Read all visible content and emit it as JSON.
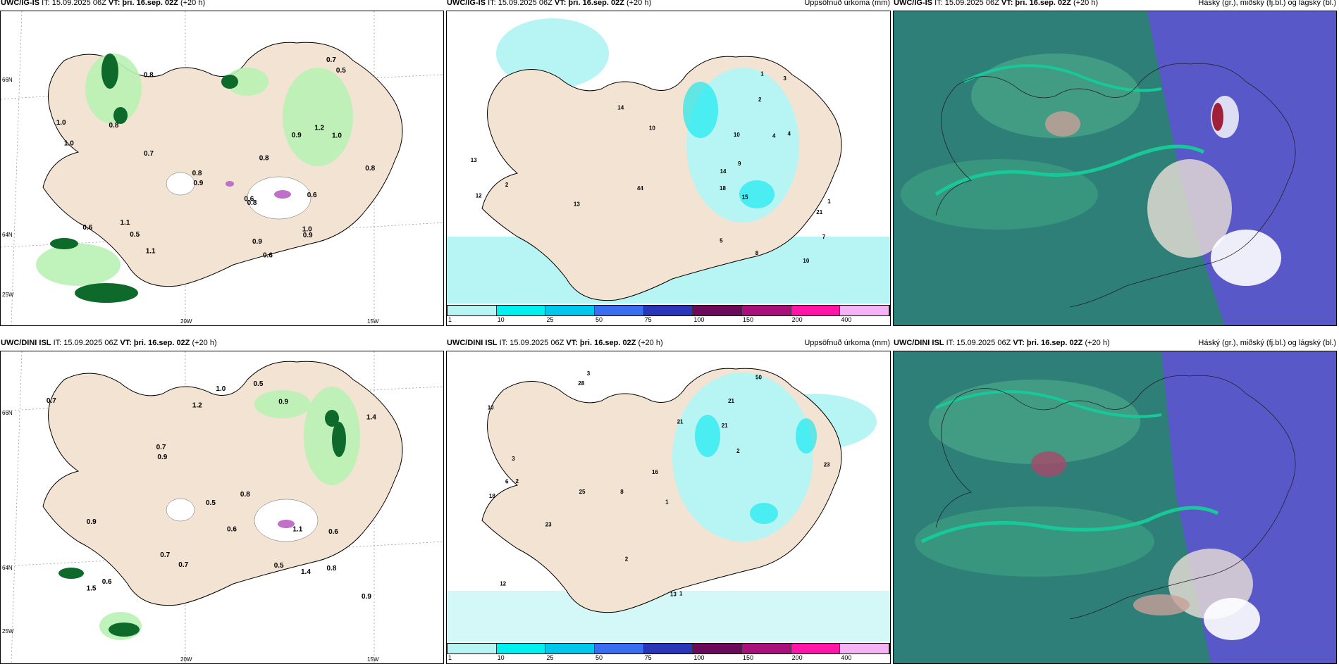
{
  "rows": [
    {
      "model": "UWC/IG-IS",
      "it_label": "IT: 15.09.2025 06Z",
      "vt_label": "VT: þri. 16.sep. 02Z",
      "lead": "(+20 h)",
      "precip_title": "Uppsöfnuð úrkoma (mm)",
      "cloud_title": "Háský (gr.), miðský (fj.bl.) og lágský (bl.)",
      "wind_values": [
        "0.6",
        "0.8",
        "1.1",
        "0.8",
        "1.2",
        "0.9",
        "0.8",
        "0.7",
        "0.9",
        "0.5",
        "0.6",
        "1.0",
        "0.8",
        "0.6",
        "0.9",
        "0.7",
        "1.0",
        "0.5",
        "0.6",
        "1.0",
        "1.0",
        "0.8",
        "1.1",
        "0.9",
        "0.8"
      ],
      "precip_values": [
        "18",
        "1",
        "4",
        "21",
        "5",
        "2",
        "4",
        "10",
        "7",
        "8",
        "9",
        "14",
        "12",
        "15",
        "13",
        "10",
        "3",
        "2",
        "1",
        "14",
        "44",
        "13",
        "10"
      ]
    },
    {
      "model": "UWC/DINI ISL",
      "it_label": "IT: 15.09.2025 06Z",
      "vt_label": "VT: þri. 16.sep. 02Z",
      "lead": "(+20 h)",
      "precip_title": "Uppsöfnuð úrkoma (mm)",
      "cloud_title": "Háský (gr.), miðský (fj.bl.) og lágský (bl.)",
      "wind_values": [
        "1.5",
        "0.6",
        "0.8",
        "0.6",
        "1.2",
        "0.5",
        "0.8",
        "0.9",
        "1.4",
        "0.7",
        "0.9",
        "0.9",
        "0.7",
        "1.0",
        "0.5",
        "0.7",
        "1.1",
        "0.9",
        "0.5",
        "1.4",
        "0.7",
        "0.6"
      ],
      "precip_values": [
        "3",
        "21",
        "23",
        "8",
        "1",
        "2",
        "10",
        "21",
        "18",
        "21",
        "16",
        "12",
        "28",
        "25",
        "13",
        "1",
        "2",
        "50",
        "2",
        "23",
        "3",
        "6"
      ]
    }
  ],
  "axes": {
    "lat_66": "66N",
    "lat_64": "64N",
    "lon_25": "25W",
    "lon_20": "20W",
    "lon_15": "15W"
  },
  "colorbar": {
    "ticks": [
      "1",
      "10",
      "25",
      "50",
      "75",
      "100",
      "150",
      "200",
      "400"
    ],
    "colors": [
      "#b7f4f4",
      "#00f0f0",
      "#00c8ec",
      "#3a6ef0",
      "#2a36b8",
      "#6b0a5a",
      "#a8107a",
      "#ff16a6",
      "#f4b4f4"
    ]
  },
  "palette": {
    "land": "#f3e3d3",
    "light_green": "#b9f2b4",
    "dark_green": "#0d6a2a",
    "purple": "#c070c8",
    "cyan": "#b7f4f4",
    "cloud_teal": "#2e7f78",
    "cloud_blue": "#5858c8"
  }
}
